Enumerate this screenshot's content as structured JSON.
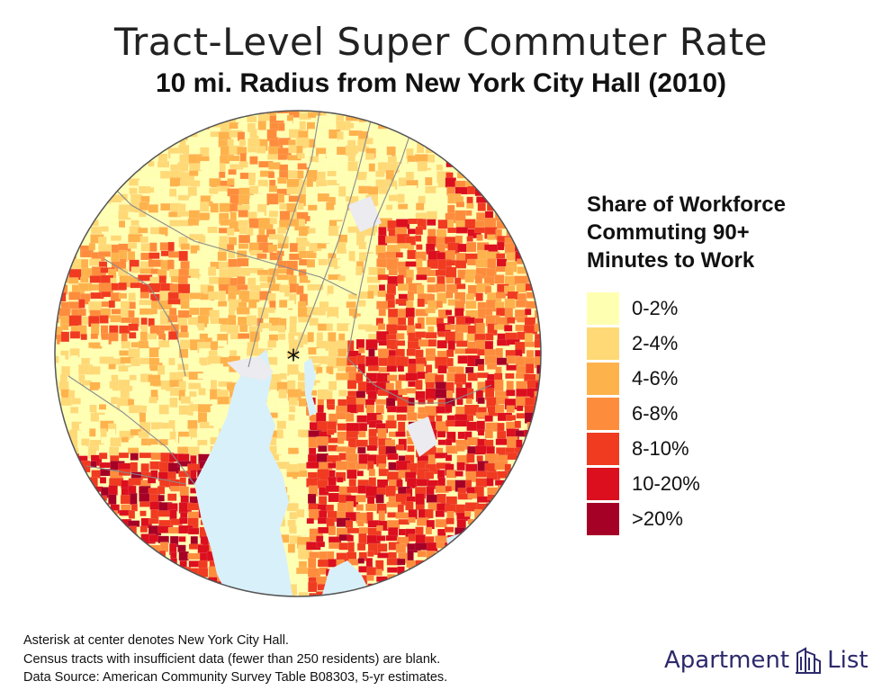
{
  "title": "Tract-Level Super Commuter Rate",
  "subtitle": "10 mi. Radius from New York City Hall (2010)",
  "map": {
    "center_marker": "*",
    "water_color": "#d8f0fa",
    "blank_color": "#ebebf0",
    "border_color": "#8a8a8a"
  },
  "legend": {
    "title_lines": [
      "Share of Workforce",
      "Commuting 90+",
      "Minutes to Work"
    ],
    "items": [
      {
        "label": "0-2%",
        "color": "#ffffb2"
      },
      {
        "label": "2-4%",
        "color": "#fed976"
      },
      {
        "label": "4-6%",
        "color": "#feb24c"
      },
      {
        "label": "6-8%",
        "color": "#fd8d3c"
      },
      {
        "label": "8-10%",
        "color": "#f03b20"
      },
      {
        "label": "10-20%",
        "color": "#dc0f1e"
      },
      {
        "label": ">20%",
        "color": "#a50026"
      }
    ]
  },
  "notes": [
    "Asterisk at center denotes New York City Hall.",
    "Census tracts with insufficient data (fewer than 250 residents) are blank.",
    "Data Source: American Community Survey Table B08303, 5-yr estimates."
  ],
  "logo": {
    "left": "Apartment",
    "right": "List",
    "icon": "building-icon",
    "color": "#2c2a6b"
  }
}
